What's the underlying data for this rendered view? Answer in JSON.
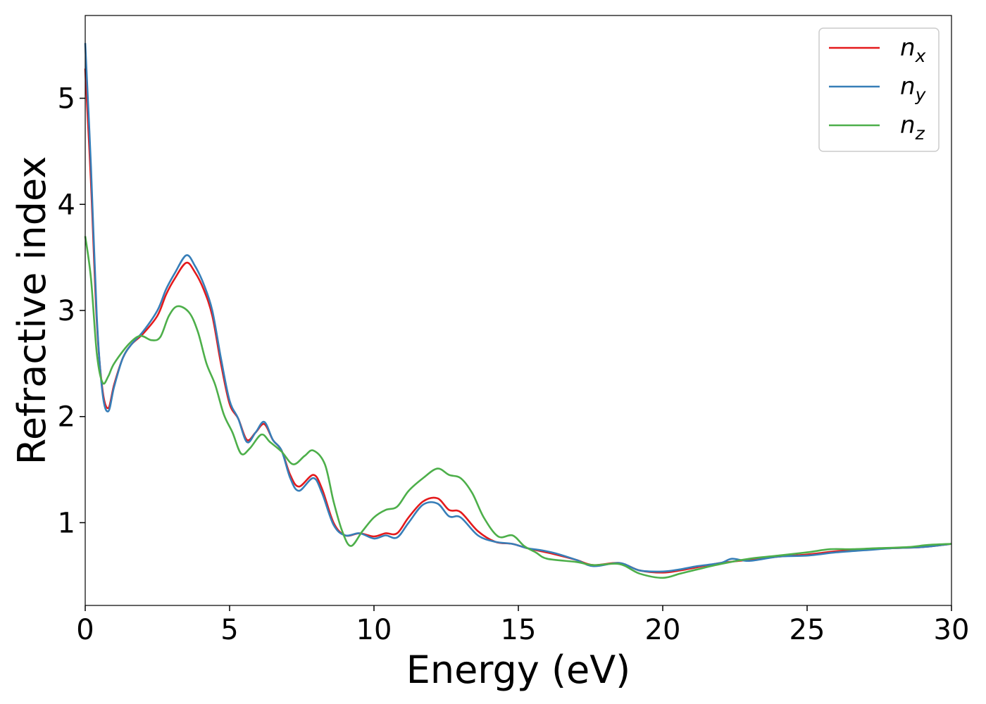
{
  "chart_data": {
    "type": "line",
    "title": "",
    "xlabel": "Energy (eV)",
    "ylabel": "Refractive index",
    "xlim": [
      0,
      30
    ],
    "ylim": [
      0.22,
      5.78
    ],
    "xticks": [
      0,
      5,
      10,
      15,
      20,
      25,
      30
    ],
    "yticks": [
      1,
      2,
      3,
      4,
      5
    ],
    "grid": false,
    "legend_position": "top-right",
    "series": [
      {
        "name": "n",
        "subscript": "x",
        "color": "#e41a1c",
        "points": [
          [
            0,
            5.28
          ],
          [
            0.2,
            4.2
          ],
          [
            0.4,
            2.9
          ],
          [
            0.6,
            2.25
          ],
          [
            0.8,
            2.08
          ],
          [
            1.0,
            2.3
          ],
          [
            1.3,
            2.55
          ],
          [
            1.6,
            2.68
          ],
          [
            2.0,
            2.78
          ],
          [
            2.5,
            2.95
          ],
          [
            2.8,
            3.15
          ],
          [
            3.1,
            3.3
          ],
          [
            3.5,
            3.45
          ],
          [
            3.8,
            3.36
          ],
          [
            4.1,
            3.2
          ],
          [
            4.4,
            2.95
          ],
          [
            4.7,
            2.5
          ],
          [
            5.0,
            2.12
          ],
          [
            5.3,
            1.98
          ],
          [
            5.6,
            1.78
          ],
          [
            5.9,
            1.85
          ],
          [
            6.2,
            1.93
          ],
          [
            6.5,
            1.78
          ],
          [
            6.8,
            1.68
          ],
          [
            7.1,
            1.45
          ],
          [
            7.4,
            1.34
          ],
          [
            7.9,
            1.45
          ],
          [
            8.2,
            1.32
          ],
          [
            8.6,
            1.0
          ],
          [
            9.0,
            0.88
          ],
          [
            9.5,
            0.9
          ],
          [
            10.0,
            0.87
          ],
          [
            10.4,
            0.9
          ],
          [
            10.8,
            0.9
          ],
          [
            11.2,
            1.05
          ],
          [
            11.7,
            1.2
          ],
          [
            12.2,
            1.23
          ],
          [
            12.6,
            1.12
          ],
          [
            13.0,
            1.1
          ],
          [
            13.6,
            0.92
          ],
          [
            14.2,
            0.82
          ],
          [
            14.8,
            0.8
          ],
          [
            15.3,
            0.76
          ],
          [
            15.8,
            0.73
          ],
          [
            16.3,
            0.7
          ],
          [
            17.0,
            0.65
          ],
          [
            17.6,
            0.6
          ],
          [
            18.5,
            0.62
          ],
          [
            19.2,
            0.55
          ],
          [
            20.0,
            0.53
          ],
          [
            20.6,
            0.55
          ],
          [
            21.2,
            0.58
          ],
          [
            22.0,
            0.62
          ],
          [
            23.0,
            0.65
          ],
          [
            24.0,
            0.68
          ],
          [
            25.0,
            0.7
          ],
          [
            26.0,
            0.73
          ],
          [
            27.0,
            0.75
          ],
          [
            28.0,
            0.76
          ],
          [
            29.0,
            0.77
          ],
          [
            30.0,
            0.8
          ]
        ]
      },
      {
        "name": "n",
        "subscript": "y",
        "color": "#377eb8",
        "points": [
          [
            0,
            5.52
          ],
          [
            0.2,
            4.35
          ],
          [
            0.4,
            2.95
          ],
          [
            0.6,
            2.22
          ],
          [
            0.8,
            2.05
          ],
          [
            1.0,
            2.28
          ],
          [
            1.3,
            2.55
          ],
          [
            1.6,
            2.68
          ],
          [
            2.0,
            2.8
          ],
          [
            2.5,
            3.0
          ],
          [
            2.8,
            3.2
          ],
          [
            3.1,
            3.35
          ],
          [
            3.5,
            3.52
          ],
          [
            3.8,
            3.42
          ],
          [
            4.1,
            3.25
          ],
          [
            4.4,
            3.0
          ],
          [
            4.7,
            2.55
          ],
          [
            5.0,
            2.15
          ],
          [
            5.3,
            1.98
          ],
          [
            5.6,
            1.76
          ],
          [
            5.9,
            1.85
          ],
          [
            6.2,
            1.95
          ],
          [
            6.5,
            1.78
          ],
          [
            6.8,
            1.68
          ],
          [
            7.1,
            1.42
          ],
          [
            7.4,
            1.3
          ],
          [
            7.9,
            1.42
          ],
          [
            8.2,
            1.28
          ],
          [
            8.6,
            0.98
          ],
          [
            9.0,
            0.88
          ],
          [
            9.5,
            0.9
          ],
          [
            10.0,
            0.85
          ],
          [
            10.4,
            0.88
          ],
          [
            10.8,
            0.86
          ],
          [
            11.2,
            1.0
          ],
          [
            11.7,
            1.17
          ],
          [
            12.2,
            1.18
          ],
          [
            12.6,
            1.06
          ],
          [
            13.0,
            1.05
          ],
          [
            13.6,
            0.88
          ],
          [
            14.2,
            0.82
          ],
          [
            14.8,
            0.8
          ],
          [
            15.3,
            0.76
          ],
          [
            15.8,
            0.74
          ],
          [
            16.3,
            0.71
          ],
          [
            17.0,
            0.65
          ],
          [
            17.6,
            0.59
          ],
          [
            18.5,
            0.62
          ],
          [
            19.2,
            0.55
          ],
          [
            20.0,
            0.54
          ],
          [
            20.6,
            0.56
          ],
          [
            21.2,
            0.59
          ],
          [
            22.0,
            0.62
          ],
          [
            22.4,
            0.66
          ],
          [
            23.0,
            0.64
          ],
          [
            24.0,
            0.68
          ],
          [
            25.0,
            0.69
          ],
          [
            26.0,
            0.72
          ],
          [
            27.0,
            0.74
          ],
          [
            28.0,
            0.76
          ],
          [
            29.0,
            0.77
          ],
          [
            30.0,
            0.8
          ]
        ]
      },
      {
        "name": "n",
        "subscript": "z",
        "color": "#4daf4a",
        "points": [
          [
            0,
            3.7
          ],
          [
            0.2,
            3.3
          ],
          [
            0.4,
            2.6
          ],
          [
            0.6,
            2.32
          ],
          [
            0.8,
            2.38
          ],
          [
            1.0,
            2.5
          ],
          [
            1.5,
            2.68
          ],
          [
            1.9,
            2.76
          ],
          [
            2.3,
            2.72
          ],
          [
            2.6,
            2.75
          ],
          [
            2.9,
            2.95
          ],
          [
            3.2,
            3.04
          ],
          [
            3.6,
            2.98
          ],
          [
            3.9,
            2.8
          ],
          [
            4.2,
            2.5
          ],
          [
            4.5,
            2.3
          ],
          [
            4.8,
            2.02
          ],
          [
            5.1,
            1.85
          ],
          [
            5.4,
            1.65
          ],
          [
            5.7,
            1.7
          ],
          [
            6.1,
            1.83
          ],
          [
            6.4,
            1.76
          ],
          [
            6.8,
            1.67
          ],
          [
            7.2,
            1.55
          ],
          [
            7.6,
            1.63
          ],
          [
            7.9,
            1.68
          ],
          [
            8.3,
            1.55
          ],
          [
            8.6,
            1.2
          ],
          [
            8.9,
            0.92
          ],
          [
            9.2,
            0.78
          ],
          [
            9.6,
            0.92
          ],
          [
            10.0,
            1.05
          ],
          [
            10.4,
            1.12
          ],
          [
            10.8,
            1.15
          ],
          [
            11.2,
            1.3
          ],
          [
            11.7,
            1.42
          ],
          [
            12.2,
            1.51
          ],
          [
            12.6,
            1.45
          ],
          [
            13.0,
            1.42
          ],
          [
            13.4,
            1.28
          ],
          [
            13.8,
            1.05
          ],
          [
            14.3,
            0.87
          ],
          [
            14.8,
            0.88
          ],
          [
            15.2,
            0.78
          ],
          [
            15.6,
            0.72
          ],
          [
            16.0,
            0.66
          ],
          [
            17.0,
            0.63
          ],
          [
            17.6,
            0.6
          ],
          [
            18.5,
            0.61
          ],
          [
            19.2,
            0.52
          ],
          [
            20.0,
            0.48
          ],
          [
            20.6,
            0.52
          ],
          [
            21.2,
            0.56
          ],
          [
            22.0,
            0.61
          ],
          [
            23.0,
            0.66
          ],
          [
            24.0,
            0.69
          ],
          [
            25.0,
            0.72
          ],
          [
            25.8,
            0.75
          ],
          [
            26.6,
            0.75
          ],
          [
            27.5,
            0.76
          ],
          [
            28.5,
            0.77
          ],
          [
            29.2,
            0.79
          ],
          [
            30.0,
            0.8
          ]
        ]
      }
    ]
  }
}
